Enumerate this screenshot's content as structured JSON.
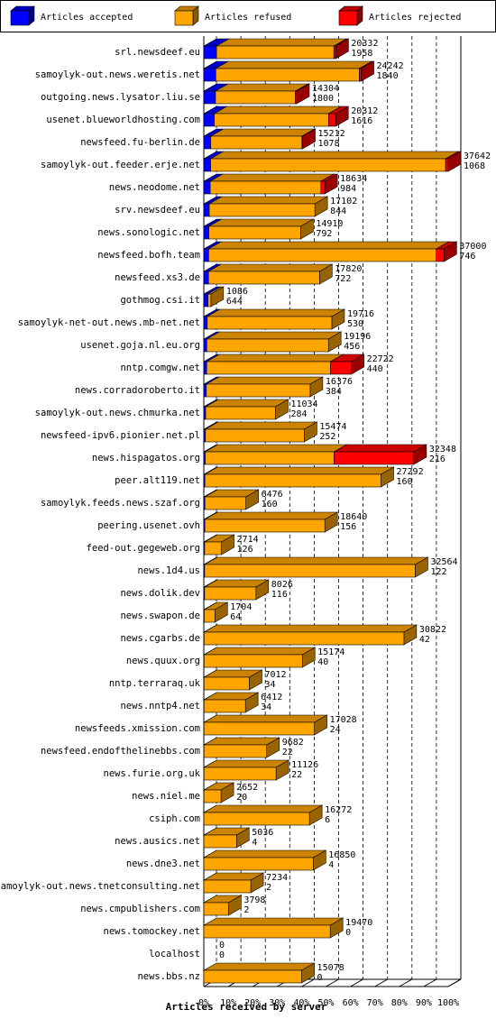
{
  "chart_data": {
    "type": "bar3d-stacked-horizontal",
    "x_label": "Articles received by server",
    "categories": [
      "srl.newsdeef.eu",
      "samoylyk-out.news.weretis.net",
      "outgoing.news.lysator.liu.se",
      "usenet.blueworldhosting.com",
      "newsfeed.fu-berlin.de",
      "samoylyk-out.feeder.erje.net",
      "news.neodome.net",
      "srv.newsdeef.eu",
      "news.sonologic.net",
      "newsfeed.bofh.team",
      "newsfeed.xs3.de",
      "gothmog.csi.it",
      "samoylyk-net-out.news.mb-net.net",
      "usenet.goja.nl.eu.org",
      "nntp.comgw.net",
      "news.corradoroberto.it",
      "samoylyk-out.news.chmurka.net",
      "newsfeed-ipv6.pionier.net.pl",
      "news.hispagatos.org",
      "peer.alt119.net",
      "samoylyk.feeds.news.szaf.org",
      "peering.usenet.ovh",
      "feed-out.gegeweb.org",
      "news.1d4.us",
      "news.dolik.dev",
      "news.swapon.de",
      "news.cgarbs.de",
      "news.quux.org",
      "nntp.terraraq.uk",
      "news.nntp4.net",
      "newsfeeds.xmission.com",
      "newsfeed.endofthelinebbs.com",
      "news.furie.org.uk",
      "news.niel.me",
      "csiph.com",
      "news.ausics.net",
      "news.dne3.net",
      "samoylyk-out.news.tnetconsulting.net",
      "news.cmpublishers.com",
      "news.tomockey.net",
      "localhost",
      "news.bbs.nz"
    ],
    "totals": [
      20332,
      24242,
      14304,
      20312,
      15212,
      37642,
      18634,
      17102,
      14910,
      37000,
      17820,
      1086,
      19716,
      19196,
      22722,
      16376,
      11034,
      15474,
      32348,
      27292,
      6476,
      18640,
      2714,
      32564,
      8026,
      1704,
      30822,
      15174,
      7012,
      6412,
      17028,
      9682,
      11126,
      2652,
      16272,
      5036,
      16850,
      7234,
      3798,
      19470,
      0,
      15078
    ],
    "series": [
      {
        "name": "Articles accepted",
        "color": "#0000ff",
        "values": [
          1958,
          1840,
          1800,
          1616,
          1078,
          1068,
          984,
          844,
          792,
          746,
          722,
          644,
          530,
          456,
          440,
          384,
          284,
          252,
          216,
          160,
          160,
          156,
          126,
          122,
          116,
          64,
          42,
          40,
          34,
          34,
          24,
          22,
          22,
          20,
          6,
          4,
          4,
          2,
          2,
          0,
          0,
          0
        ]
      },
      {
        "name": "Articles refused",
        "color": "#ffa500",
        "values": [
          18074,
          22102,
          12304,
          17596,
          14034,
          36174,
          17050,
          16258,
          14118,
          35054,
          17098,
          442,
          19186,
          18740,
          19082,
          15992,
          10750,
          15222,
          19832,
          27132,
          6316,
          18484,
          2588,
          32442,
          7910,
          1640,
          30780,
          15134,
          6978,
          6378,
          17004,
          9660,
          11104,
          2632,
          16266,
          5032,
          16846,
          7232,
          3796,
          19470,
          0,
          15078
        ]
      },
      {
        "name": "Articles rejected",
        "color": "#ff0000",
        "values": [
          300,
          300,
          200,
          1100,
          100,
          400,
          600,
          0,
          0,
          1200,
          0,
          0,
          0,
          0,
          3200,
          0,
          0,
          0,
          12300,
          0,
          0,
          0,
          0,
          0,
          0,
          0,
          0,
          0,
          0,
          0,
          0,
          0,
          0,
          0,
          0,
          0,
          0,
          0,
          0,
          0,
          0,
          0
        ]
      }
    ],
    "xlim": [
      0,
      37642
    ],
    "xticks": [
      {
        "value": 0,
        "label": "0%"
      },
      {
        "value": 3764.2,
        "label": "10%"
      },
      {
        "value": 7528.4,
        "label": "20%"
      },
      {
        "value": 11292.6,
        "label": "30%"
      },
      {
        "value": 15056.8,
        "label": "40%"
      },
      {
        "value": 18821,
        "label": "50%"
      },
      {
        "value": 22585.2,
        "label": "60%"
      },
      {
        "value": 26349.4,
        "label": "70%"
      },
      {
        "value": 30113.6,
        "label": "80%"
      },
      {
        "value": 33877.8,
        "label": "90%"
      },
      {
        "value": 37642,
        "label": "100%"
      }
    ],
    "grid": true,
    "legend": "top"
  }
}
